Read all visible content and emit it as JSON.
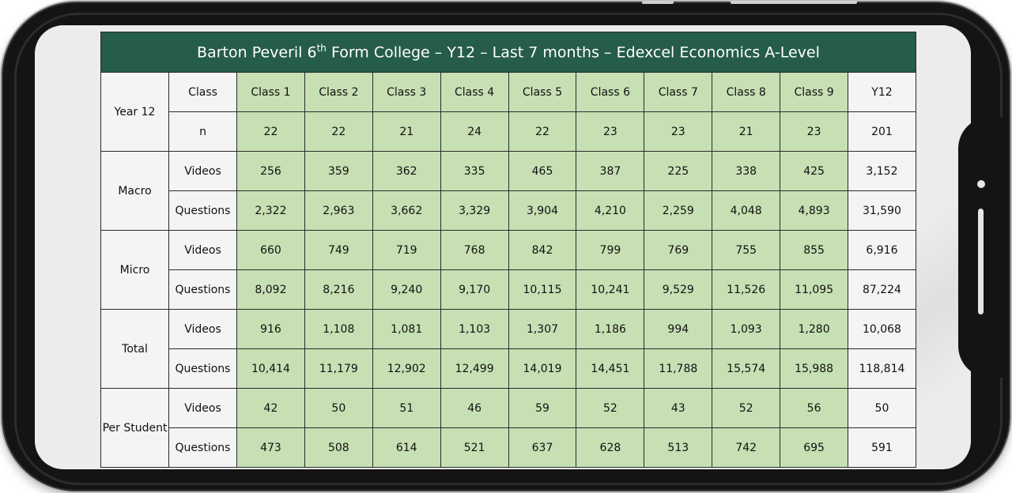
{
  "title": {
    "part1": "Barton Peveril 6",
    "sup": "th",
    "part2": " Form College – Y12 – Last 7 months – Edexcel Economics A-Level"
  },
  "colors": {
    "header_bg": "#255c4a",
    "class_cell_bg": "#c6e0b4",
    "label_cell_bg": "#f4f4f4"
  },
  "table": {
    "year_group_label": "Year 12",
    "class_row_label": "Class",
    "n_row_label": "n",
    "class_headers": [
      "Class 1",
      "Class 2",
      "Class 3",
      "Class 4",
      "Class 5",
      "Class 6",
      "Class 7",
      "Class 8",
      "Class 9",
      "Y12"
    ],
    "n_values": [
      "22",
      "22",
      "21",
      "24",
      "22",
      "23",
      "23",
      "21",
      "23",
      "201"
    ],
    "groups": [
      {
        "label": "Macro",
        "rows": [
          {
            "label": "Videos",
            "values": [
              "256",
              "359",
              "362",
              "335",
              "465",
              "387",
              "225",
              "338",
              "425",
              "3,152"
            ]
          },
          {
            "label": "Questions",
            "values": [
              "2,322",
              "2,963",
              "3,662",
              "3,329",
              "3,904",
              "4,210",
              "2,259",
              "4,048",
              "4,893",
              "31,590"
            ]
          }
        ]
      },
      {
        "label": "Micro",
        "rows": [
          {
            "label": "Videos",
            "values": [
              "660",
              "749",
              "719",
              "768",
              "842",
              "799",
              "769",
              "755",
              "855",
              "6,916"
            ]
          },
          {
            "label": "Questions",
            "values": [
              "8,092",
              "8,216",
              "9,240",
              "9,170",
              "10,115",
              "10,241",
              "9,529",
              "11,526",
              "11,095",
              "87,224"
            ]
          }
        ]
      },
      {
        "label": "Total",
        "rows": [
          {
            "label": "Videos",
            "values": [
              "916",
              "1,108",
              "1,081",
              "1,103",
              "1,307",
              "1,186",
              "994",
              "1,093",
              "1,280",
              "10,068"
            ]
          },
          {
            "label": "Questions",
            "values": [
              "10,414",
              "11,179",
              "12,902",
              "12,499",
              "14,019",
              "14,451",
              "11,788",
              "15,574",
              "15,988",
              "118,814"
            ]
          }
        ]
      },
      {
        "label": "Per Student",
        "rows": [
          {
            "label": "Videos",
            "values": [
              "42",
              "50",
              "51",
              "46",
              "59",
              "52",
              "43",
              "52",
              "56",
              "50"
            ]
          },
          {
            "label": "Questions",
            "values": [
              "473",
              "508",
              "614",
              "521",
              "637",
              "628",
              "513",
              "742",
              "695",
              "591"
            ]
          }
        ]
      }
    ]
  }
}
